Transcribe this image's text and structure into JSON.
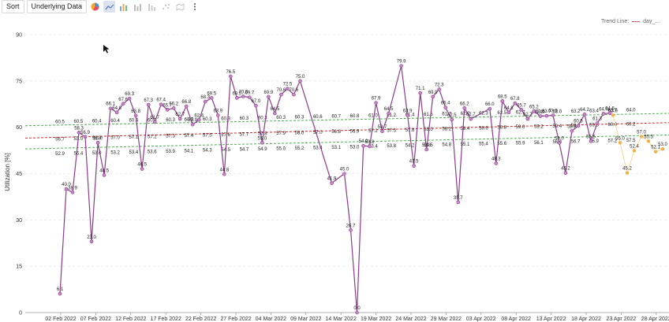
{
  "toolbar": {
    "sort_label": "Sort",
    "underlying_label": "Underlying Data",
    "icons": [
      "pie-chart-icon",
      "line-chart-icon",
      "bar-chart-icon",
      "column-chart-icon",
      "stacked-bar-icon",
      "scatter-icon",
      "map-icon",
      "more-icon"
    ]
  },
  "trend_legend": {
    "label": "Trend Line:",
    "series": "day_..."
  },
  "colors": {
    "line": "#8e3a8e",
    "marker": "#c889c8",
    "orange": "#f5b041",
    "green_trend": "#4caf50",
    "red_trend": "#d62728",
    "grid": "#e8e8e8"
  },
  "chart_data": {
    "type": "line",
    "ylabel": "Utilization [%]",
    "ylim": [
      0,
      90
    ],
    "yticks": [
      0,
      15,
      30,
      45,
      60,
      75,
      90
    ],
    "xticks": [
      "02 Feb 2022",
      "07 Feb 2022",
      "12 Feb 2022",
      "17 Feb 2022",
      "22 Feb 2022",
      "27 Feb 2022",
      "04 Mar 2022",
      "09 Mar 2022",
      "14 Mar 2022",
      "19 Mar 2022",
      "24 Mar 2022",
      "29 Mar 2022",
      "03 Apr 2022",
      "08 Apr 2022",
      "13 Apr 2022",
      "18 Apr 2022",
      "23 Apr 2022",
      "28 Apr 2022"
    ],
    "series": [
      {
        "name": "day_utilization",
        "values": [
          6.1,
          40.0,
          38.9,
          58.3,
          56.9,
          23.0,
          55.0,
          44.5,
          66.1,
          64.8,
          67.6,
          69.3,
          63.8,
          46.5,
          67.3,
          61.7,
          67.4,
          65.7,
          66.2,
          62.7,
          66.8,
          60.9,
          62.4,
          68.3,
          69.5,
          63.9,
          44.8,
          76.5,
          69.5,
          70.0,
          69.7,
          67.0,
          55.0,
          69.9,
          64.5,
          70.6,
          72.5,
          70.6,
          75.0,
          null,
          null,
          null,
          null,
          41.9,
          null,
          45.0,
          26.7,
          0.0,
          54.0,
          53.8,
          67.9,
          58.7,
          64.5,
          null,
          79.9,
          63.9,
          47.5,
          71.1,
          52.8,
          69.9,
          72.3,
          66.4,
          62.5,
          35.7,
          66.2,
          62.7,
          null,
          null,
          66.0,
          48.3,
          68.5,
          64.8,
          67.8,
          65.7,
          62.7,
          65.2,
          63.6,
          63.7,
          63.9,
          55.0,
          45.2,
          58.8,
          60.5,
          64.2,
          55.5,
          61.3,
          64.4,
          64.6
        ]
      },
      {
        "name": "forecast",
        "values": [
          63.9,
          55.0,
          45.2,
          52.4,
          57.0,
          55.5,
          52.1,
          53.0
        ]
      }
    ],
    "trend_lines": [
      {
        "name": "upper",
        "start": 60.5,
        "end": 64.5
      },
      {
        "name": "mean",
        "start": 56.5,
        "end": 61.5
      },
      {
        "name": "lower",
        "start": 53.0,
        "end": 57.5
      }
    ],
    "extra_labels": [
      "60.5",
      "56.7",
      "52.9",
      "60.5",
      "53.0",
      "56.4",
      "60.4",
      "56.9",
      "53.0",
      "60.4",
      "57.0",
      "53.2",
      "60.4",
      "57.1",
      "53.4",
      "60.3",
      "57.2",
      "53.6",
      "60.3",
      "57.3",
      "53.9",
      "60.3",
      "57.4",
      "54.1",
      "60.3",
      "57.5",
      "54.3",
      "60.3",
      "57.6",
      "54.5",
      "60.3",
      "57.7",
      "54.7",
      "60.3",
      "57.8",
      "54.9",
      "60.3",
      "57.9",
      "55.0",
      "60.3",
      "58.0",
      "55.2",
      "60.6",
      "57.0",
      "53.4",
      "60.7",
      "56.8",
      "53.1",
      "60.8",
      "56.9",
      "53.0",
      "61.0",
      "57.2",
      "53.4",
      "61.2",
      "57.5",
      "53.8",
      "61.4",
      "57.8",
      "54.2",
      "61.6",
      "58.0",
      "54.5",
      "61.7",
      "58.2",
      "54.8",
      "62.0",
      "58.4",
      "55.1",
      "62.3",
      "58.6",
      "55.4",
      "62.5",
      "58.8",
      "55.6",
      "62.7",
      "59.0",
      "55.9",
      "62.8",
      "59.2",
      "56.1",
      "63.0",
      "59.4",
      "56.4",
      "63.2",
      "59.6",
      "56.7",
      "63.4",
      "59.8",
      "56.9",
      "63.7",
      "60.0",
      "57.2",
      "64.0",
      "60.2",
      "57.5"
    ]
  }
}
